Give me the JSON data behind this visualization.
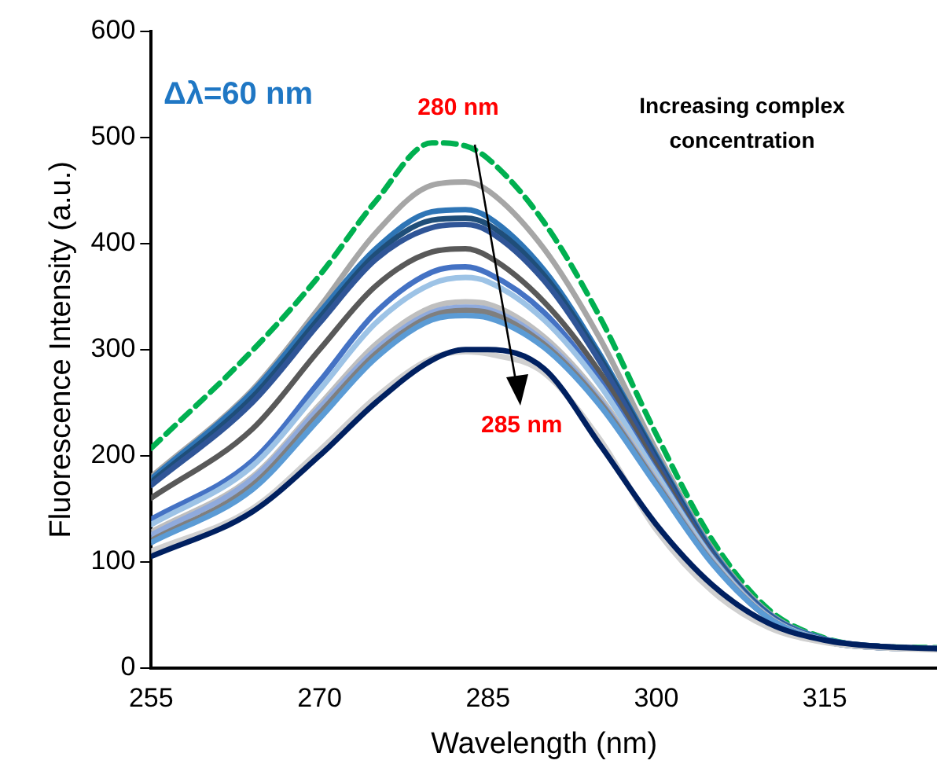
{
  "chart_data": {
    "type": "line",
    "xlabel": "Wavelength (nm)",
    "ylabel": "Fluorescence Intensity (a.u.)",
    "x": [
      255,
      264,
      270,
      275,
      280,
      283,
      285,
      290,
      295,
      300,
      305,
      310,
      315,
      320,
      325
    ],
    "xlim": [
      255,
      325
    ],
    "xticks": [
      255,
      270,
      285,
      300,
      315
    ],
    "ylim": [
      0,
      600
    ],
    "yticks": [
      0,
      100,
      200,
      300,
      400,
      500,
      600
    ],
    "grid": false,
    "legend": false,
    "marker": "none",
    "annotations": [
      "Δλ=60 nm",
      {
        "text": "280 nm",
        "x": 280,
        "y": 495
      },
      "Increasing complex concentration",
      "285 nm"
    ],
    "series": [
      {
        "color": "#00b050",
        "line_style": "dashed",
        "values": [
          207,
          299,
          370,
          440,
          495,
          492,
          480,
          420,
          330,
          220,
          120,
          55,
          28,
          20,
          19
        ]
      },
      {
        "color": "#a6a6a6",
        "values": [
          180,
          262,
          340,
          410,
          455,
          458,
          450,
          395,
          310,
          205,
          112,
          52,
          27,
          20,
          18
        ]
      },
      {
        "color": "#2e75b6",
        "values": [
          178,
          260,
          335,
          395,
          430,
          432,
          425,
          375,
          295,
          200,
          110,
          51,
          27,
          20,
          18
        ]
      },
      {
        "color": "#1f4e79",
        "values": [
          175,
          255,
          330,
          390,
          422,
          424,
          418,
          370,
          292,
          198,
          108,
          50,
          26,
          20,
          18
        ]
      },
      {
        "color": "#2f5597",
        "values": [
          172,
          250,
          325,
          385,
          415,
          418,
          412,
          365,
          288,
          195,
          107,
          50,
          26,
          20,
          18
        ]
      },
      {
        "color": "#595959",
        "values": [
          160,
          225,
          300,
          360,
          392,
          395,
          388,
          345,
          278,
          190,
          105,
          49,
          26,
          19,
          18
        ]
      },
      {
        "color": "#4472c4",
        "values": [
          140,
          195,
          270,
          335,
          373,
          378,
          372,
          335,
          270,
          185,
          104,
          49,
          26,
          19,
          18
        ]
      },
      {
        "color": "#9dc3e6",
        "values": [
          135,
          190,
          262,
          325,
          362,
          368,
          364,
          328,
          266,
          183,
          103,
          48,
          26,
          19,
          18
        ]
      },
      {
        "color": "#bfbfbf",
        "values": [
          128,
          180,
          248,
          305,
          340,
          345,
          343,
          312,
          255,
          178,
          101,
          48,
          25,
          19,
          18
        ]
      },
      {
        "color": "#8faadc",
        "values": [
          125,
          178,
          245,
          300,
          335,
          340,
          338,
          308,
          252,
          176,
          100,
          47,
          25,
          19,
          18
        ]
      },
      {
        "color": "#7f7f7f",
        "values": [
          120,
          172,
          240,
          296,
          332,
          337,
          335,
          305,
          250,
          174,
          99,
          47,
          25,
          19,
          18
        ]
      },
      {
        "color": "#5b9bd5",
        "values": [
          118,
          168,
          235,
          292,
          328,
          332,
          330,
          302,
          247,
          172,
          98,
          47,
          25,
          19,
          18
        ]
      },
      {
        "color": "#d0d0d0",
        "values": [
          110,
          150,
          205,
          255,
          292,
          298,
          296,
          278,
          215,
          130,
          72,
          38,
          24,
          19,
          17
        ]
      },
      {
        "color": "#002060",
        "values": [
          105,
          147,
          200,
          250,
          290,
          300,
          300,
          282,
          210,
          135,
          78,
          42,
          26,
          20,
          18
        ]
      }
    ]
  }
}
